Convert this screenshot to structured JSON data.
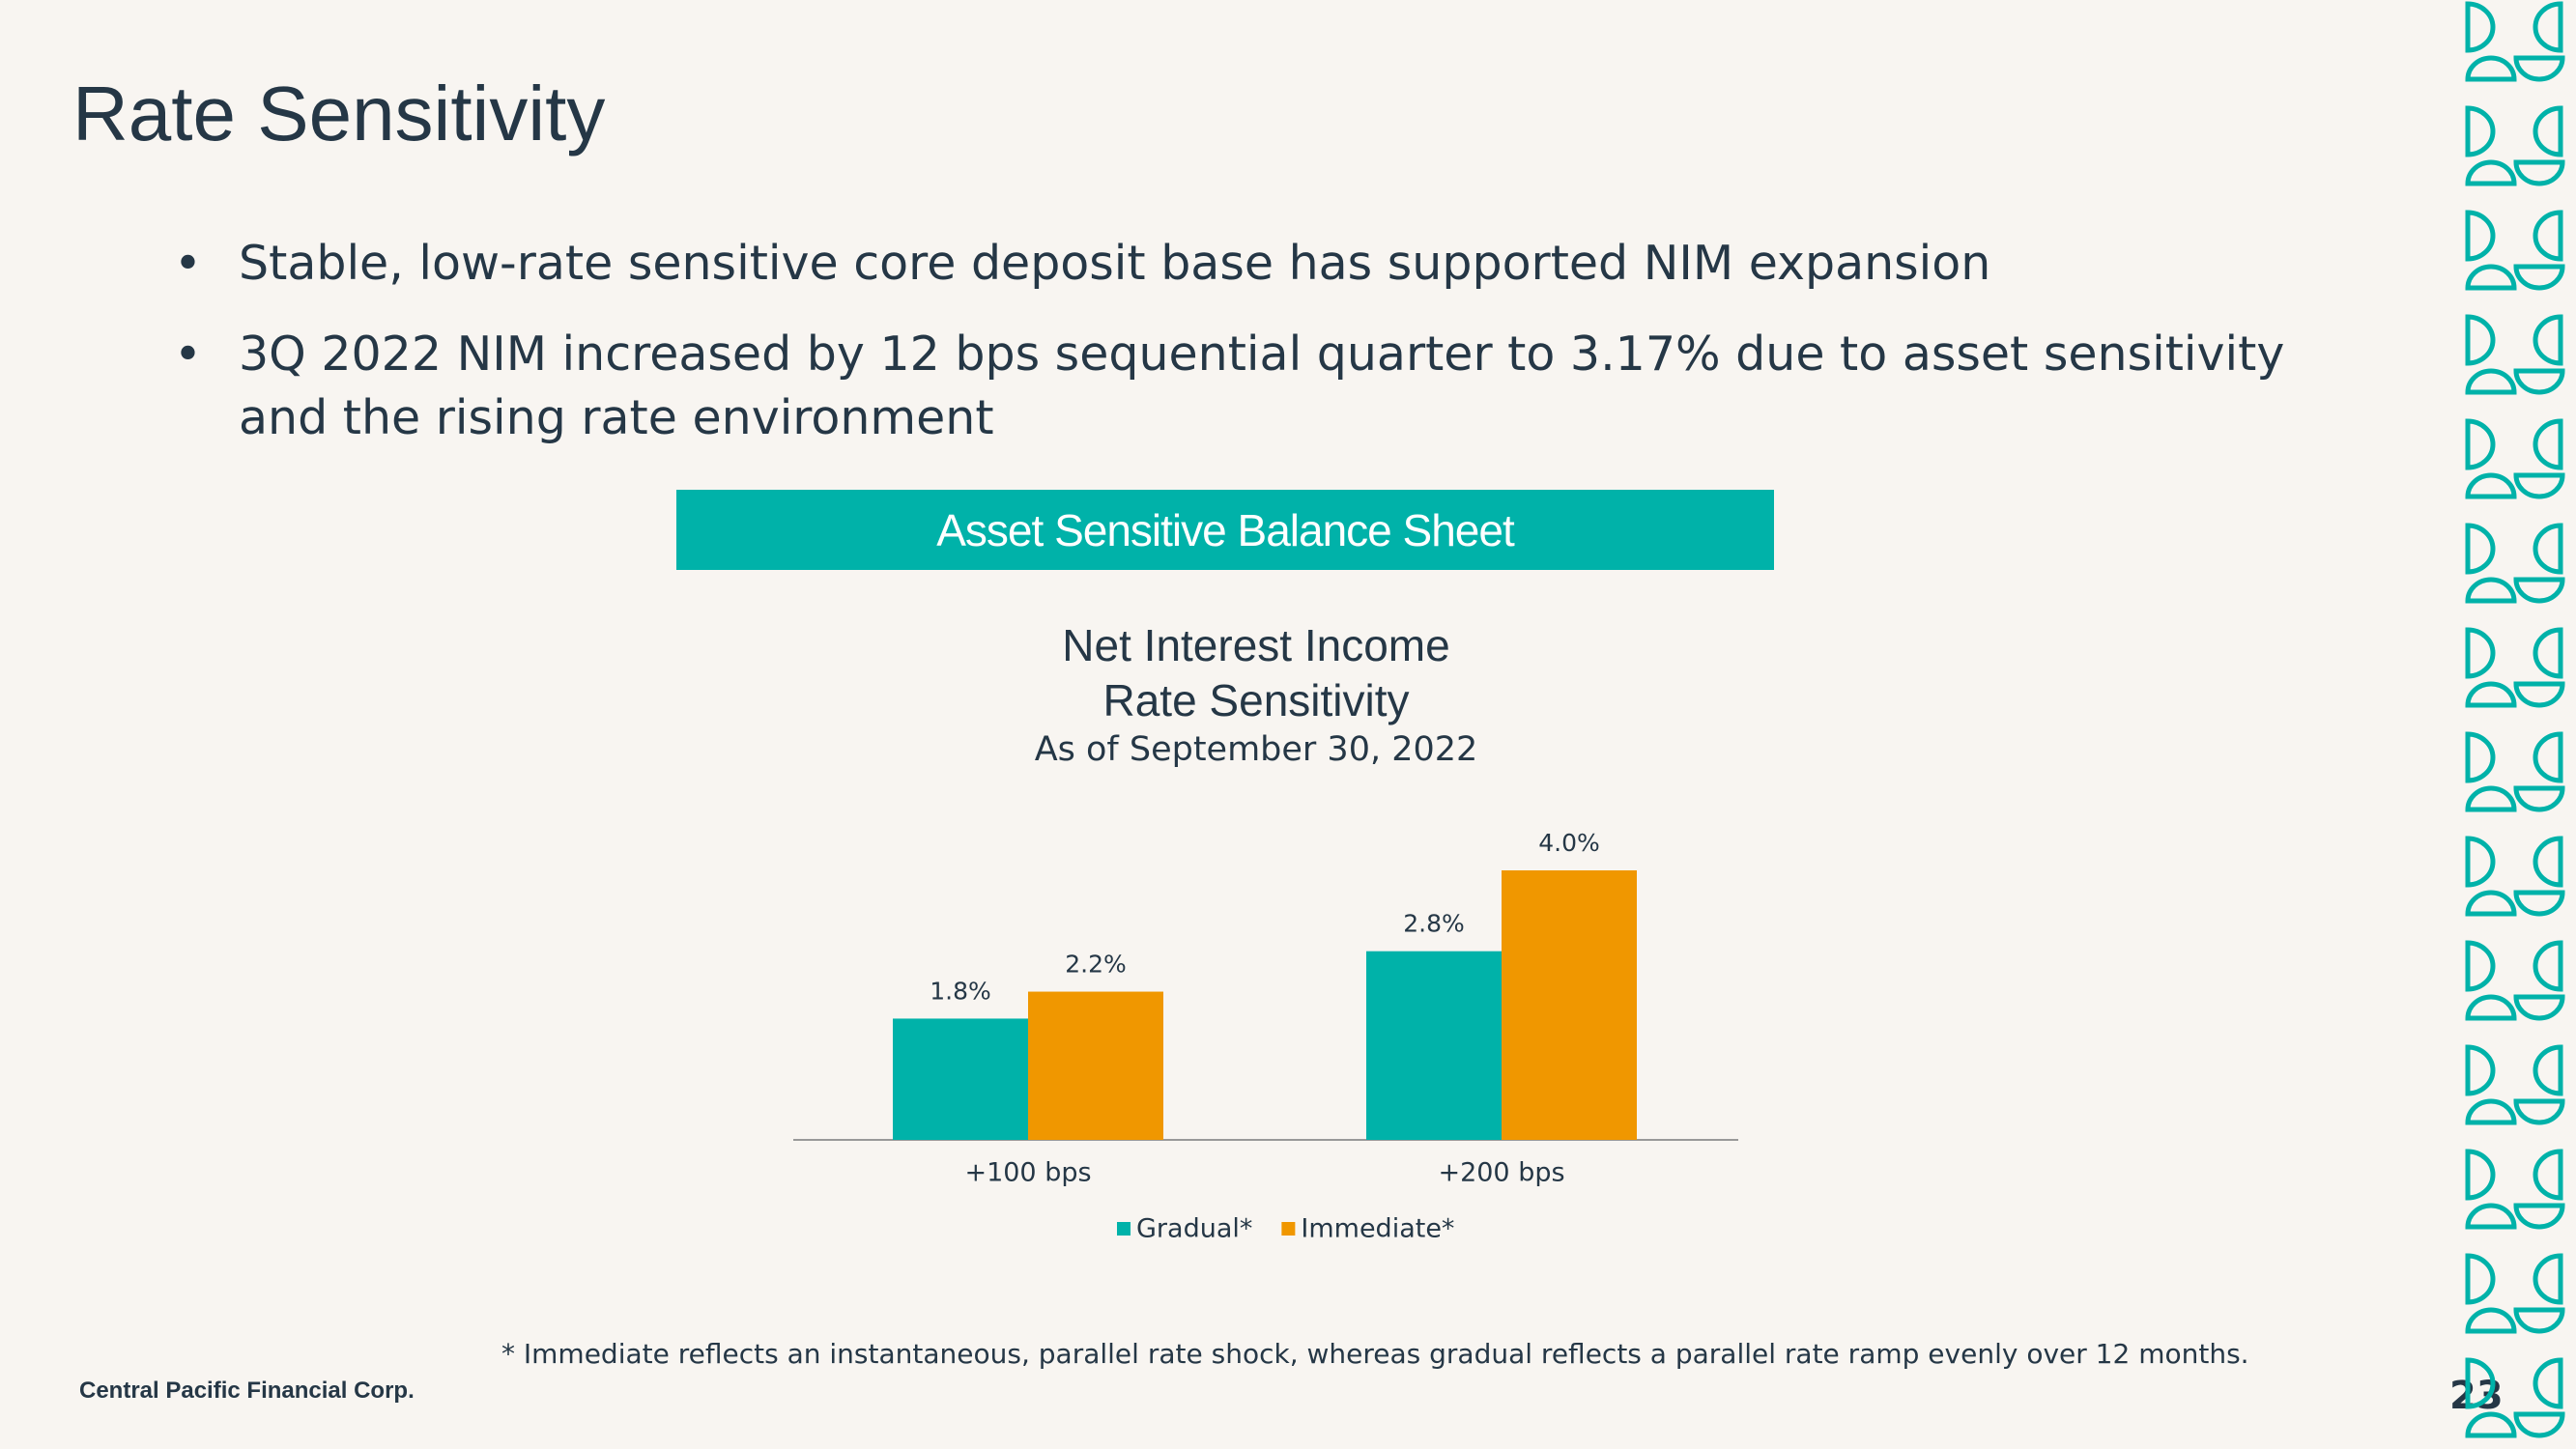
{
  "header": {
    "title": "Rate Sensitivity"
  },
  "bullets": [
    "Stable, low-rate sensitive core deposit base has supported NIM expansion",
    "3Q 2022 NIM increased by 12 bps sequential quarter to 3.17% due to asset sensitivity and the rising rate environment"
  ],
  "banner": "Asset Sensitive Balance Sheet",
  "chart_data": {
    "type": "bar",
    "title": [
      "Net Interest Income",
      "Rate Sensitivity"
    ],
    "subtitle": "As of September 30, 2022",
    "categories": [
      "+100 bps",
      "+200 bps"
    ],
    "series": [
      {
        "name": "Gradual*",
        "color": "#00b2a9",
        "values": [
          1.8,
          2.8
        ],
        "value_labels": [
          "1.8%",
          "2.8%"
        ]
      },
      {
        "name": "Immediate*",
        "color": "#f09700",
        "values": [
          2.2,
          4.0
        ],
        "value_labels": [
          "2.2%",
          "4.0%"
        ]
      }
    ]
  },
  "footnote": "* Immediate reflects an instantaneous, parallel rate shock, whereas gradual reflects a parallel rate ramp evenly over 12 months.",
  "footer": {
    "company": "Central Pacific Financial Corp.",
    "page": "23"
  }
}
